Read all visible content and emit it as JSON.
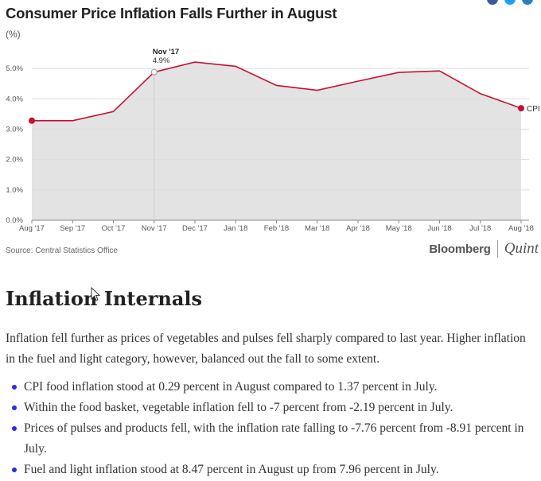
{
  "header": {
    "title": "Consumer Price Inflation Falls Further in August",
    "unit": "(%)"
  },
  "chart_data": {
    "type": "area",
    "categories": [
      "Aug '17",
      "Sep '17",
      "Oct '17",
      "Nov '17",
      "Dec '17",
      "Jan '18",
      "Feb '18",
      "Mar '18",
      "Apr '18",
      "May '18",
      "Jun '18",
      "Jul '18",
      "Aug '18"
    ],
    "series": [
      {
        "name": "CPI",
        "values": [
          3.28,
          3.28,
          3.58,
          4.88,
          5.21,
          5.07,
          4.44,
          4.28,
          4.58,
          4.87,
          4.92,
          4.17,
          3.69
        ]
      }
    ],
    "yticks": [
      "0.0%",
      "1.0%",
      "2.0%",
      "3.0%",
      "4.0%",
      "5.0%"
    ],
    "ylim": [
      0,
      5.5
    ],
    "annotation": {
      "category": "Nov '17",
      "label": "Nov '17",
      "value_label": "4.9%"
    },
    "line_color": "#c8102e",
    "fill_color": "#e3e3e3",
    "grid": true
  },
  "footer": {
    "source": "Source: Central Statistics Office",
    "brand_primary": "Bloomberg",
    "brand_secondary": "Quint"
  },
  "article": {
    "heading": "Inflation Internals",
    "paragraph": "Inflation fell further as prices of vegetables and pulses fell sharply compared to last year. Higher inflation in the fuel and light category, however, balanced out the fall to some extent.",
    "bullets": [
      "CPI food inflation stood at 0.29 percent in August compared to 1.37 percent in July.",
      "Within the food basket, vegetable inflation fell to -7 percent from -2.19 percent in July.",
      "Prices of pulses and products fell, with the inflation rate falling to -7.76 percent from -8.91 percent in July.",
      "Fuel and light inflation stood at 8.47 percent in August up from 7.96 percent in July."
    ]
  },
  "colors": {
    "bullet": "#2b2ed6",
    "grid": "#dddddd",
    "axis_text": "#555555"
  }
}
